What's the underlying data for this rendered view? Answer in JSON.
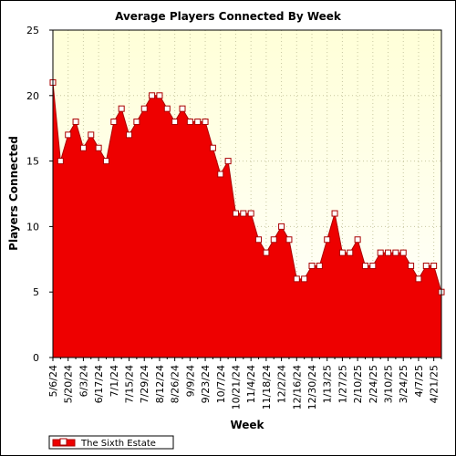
{
  "chart_data": {
    "type": "area",
    "title": "Average Players Connected By Week",
    "xlabel": "Week",
    "ylabel": "Players Connected",
    "ylim": [
      0,
      25
    ],
    "yticks": [
      0,
      5,
      10,
      15,
      20,
      25
    ],
    "grid": true,
    "legend": "bottom-left",
    "colors": {
      "plot_bg_top": "#ffffd8",
      "plot_bg_bottom": "#ffffff",
      "fill": "#ee0000",
      "line": "#aa0000",
      "marker_fill": "#ffffff",
      "grid": "#c8c8a0"
    },
    "x_tick_labels": [
      "5/6/24",
      "5/20/24",
      "6/3/24",
      "6/17/24",
      "7/1/24",
      "7/15/24",
      "7/29/24",
      "8/12/24",
      "8/26/24",
      "9/9/24",
      "9/23/24",
      "10/7/24",
      "10/21/24",
      "11/4/24",
      "11/18/24",
      "12/2/24",
      "12/16/24",
      "12/30/24",
      "1/13/25",
      "1/27/25",
      "2/10/25",
      "2/24/25",
      "3/10/25",
      "3/24/25",
      "4/7/25",
      "4/21/25"
    ],
    "x_tick_every": 2,
    "series": [
      {
        "name": "The Sixth Estate",
        "values": [
          21,
          15,
          17,
          18,
          16,
          17,
          16,
          15,
          18,
          19,
          17,
          18,
          19,
          20,
          20,
          19,
          18,
          19,
          18,
          18,
          18,
          16,
          14,
          15,
          11,
          11,
          11,
          9,
          8,
          9,
          10,
          9,
          6,
          6,
          7,
          7,
          9,
          11,
          8,
          8,
          9,
          7,
          7,
          8,
          8,
          8,
          8,
          7,
          6,
          7,
          7,
          5
        ]
      }
    ]
  }
}
